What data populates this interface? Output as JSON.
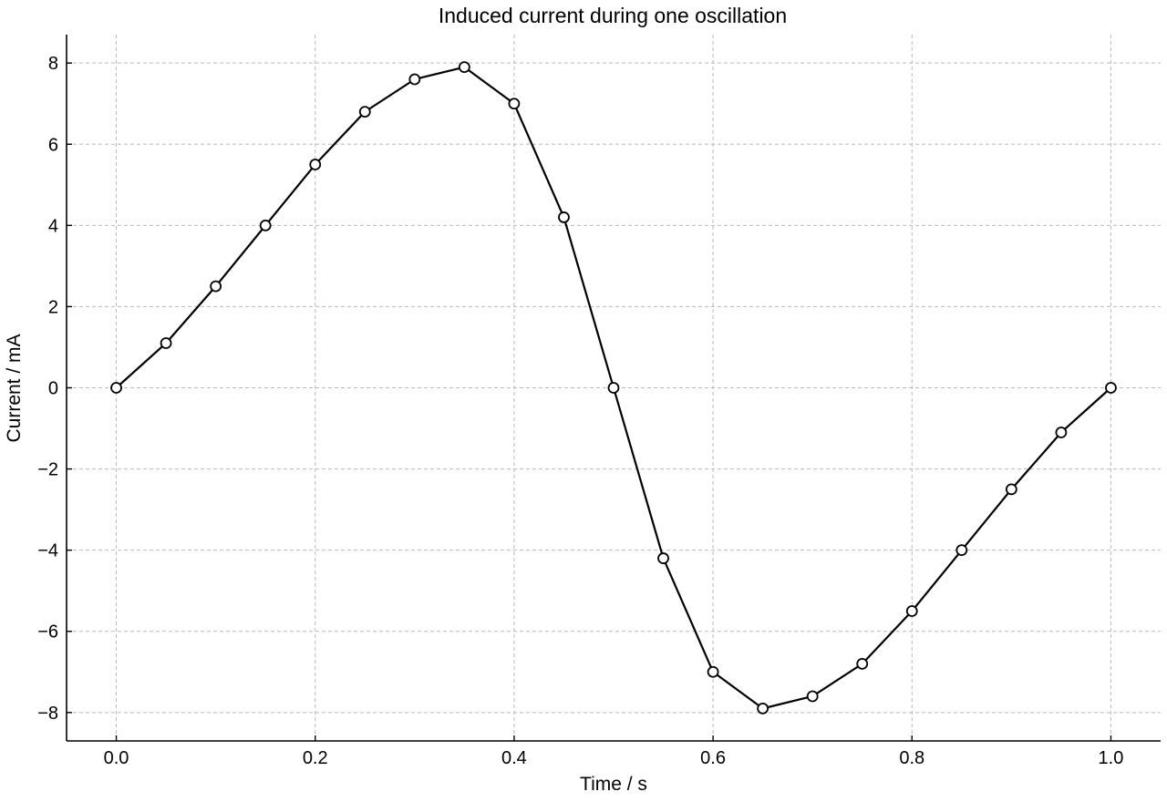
{
  "chart_data": {
    "type": "line",
    "title": "Induced current during one oscillation",
    "xlabel": "Time / s",
    "ylabel": "Current / mA",
    "xlim": [
      -0.05,
      1.05
    ],
    "ylim": [
      -8.7,
      8.7
    ],
    "xticks": [
      0.0,
      0.2,
      0.4,
      0.6,
      0.8,
      1.0
    ],
    "xtick_labels": [
      "0.0",
      "0.2",
      "0.4",
      "0.6",
      "0.8",
      "1.0"
    ],
    "yticks": [
      -8,
      -6,
      -4,
      -2,
      0,
      2,
      4,
      6,
      8
    ],
    "ytick_labels": [
      "−8",
      "−6",
      "−4",
      "−2",
      "0",
      "2",
      "4",
      "6",
      "8"
    ],
    "grid": true,
    "legend": "none",
    "series": [
      {
        "x": [
          0.0,
          0.05,
          0.1,
          0.15,
          0.2,
          0.25,
          0.3,
          0.35,
          0.4,
          0.45,
          0.5,
          0.55,
          0.6,
          0.65,
          0.7,
          0.75,
          0.8,
          0.85,
          0.9,
          0.95,
          1.0
        ],
        "y": [
          0.0,
          1.1,
          2.5,
          4.0,
          5.5,
          6.8,
          7.6,
          7.9,
          7.0,
          4.2,
          0.0,
          -4.2,
          -7.0,
          -7.9,
          -7.6,
          -6.8,
          -5.5,
          -4.0,
          -2.5,
          -1.1,
          0.0
        ],
        "color": "#000000",
        "marker": "open-circle"
      }
    ]
  }
}
